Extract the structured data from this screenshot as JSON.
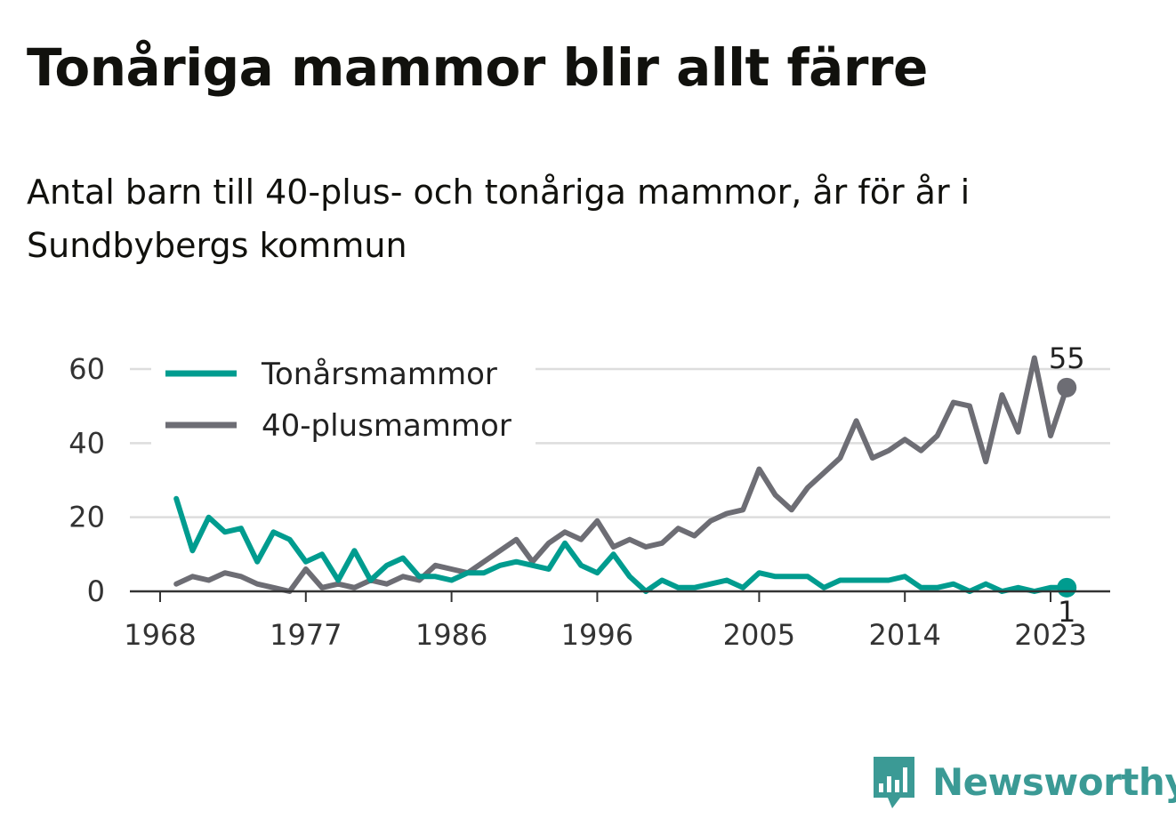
{
  "title": "Tonåriga mammor blir allt färre",
  "subtitle": "Antal barn till 40-plus- och tonåriga mammor, år för år i Sundbybergs kommun",
  "brand": {
    "name": "Newsworthy",
    "icon": "newsworthy-logo-icon",
    "color": "#3b9a95"
  },
  "chart_data": {
    "type": "line",
    "title": "Tonåriga mammor blir allt färre",
    "subtitle": "Antal barn till 40-plus- och tonåriga mammor, år för år i Sundbybergs kommun",
    "x": [
      1969,
      1970,
      1971,
      1972,
      1973,
      1974,
      1975,
      1976,
      1977,
      1978,
      1979,
      1980,
      1981,
      1982,
      1983,
      1984,
      1985,
      1986,
      1987,
      1988,
      1989,
      1990,
      1991,
      1992,
      1993,
      1994,
      1995,
      1996,
      1997,
      1998,
      1999,
      2000,
      2001,
      2002,
      2003,
      2004,
      2005,
      2006,
      2007,
      2008,
      2009,
      2010,
      2011,
      2012,
      2013,
      2014,
      2015,
      2016,
      2017,
      2018,
      2019,
      2020,
      2021,
      2022,
      2023,
      2024
    ],
    "x_ticks": [
      "1968",
      "1977",
      "1986",
      "1996",
      "2005",
      "2014",
      "2023"
    ],
    "x_tick_values": [
      1968,
      1977,
      1986,
      1995,
      2005,
      2014,
      2023
    ],
    "y_ticks": [
      "0",
      "20",
      "40",
      "60"
    ],
    "ylim": [
      0,
      62
    ],
    "grid": true,
    "legend_position": "top-left",
    "series": [
      {
        "name": "Tonårsmammor",
        "color": "#009c8f",
        "values": [
          25,
          11,
          20,
          16,
          17,
          8,
          16,
          14,
          8,
          10,
          3,
          11,
          3,
          7,
          9,
          4,
          4,
          3,
          5,
          5,
          7,
          8,
          7,
          6,
          13,
          7,
          5,
          10,
          4,
          0,
          3,
          1,
          1,
          2,
          3,
          1,
          5,
          4,
          4,
          4,
          1,
          3,
          3,
          3,
          3,
          4,
          1,
          1,
          2,
          0,
          2,
          0,
          1,
          0,
          1,
          1
        ],
        "end_label": "1"
      },
      {
        "name": "40-plusmammor",
        "color": "#6d6d74",
        "values": [
          2,
          4,
          3,
          5,
          4,
          2,
          1,
          0,
          6,
          1,
          2,
          1,
          3,
          2,
          4,
          3,
          7,
          6,
          5,
          8,
          11,
          14,
          8,
          13,
          16,
          14,
          19,
          12,
          14,
          12,
          13,
          17,
          15,
          19,
          21,
          22,
          33,
          26,
          22,
          28,
          32,
          36,
          46,
          36,
          38,
          41,
          38,
          42,
          51,
          50,
          35,
          53,
          43,
          63,
          42,
          55
        ],
        "end_label": "55"
      }
    ]
  }
}
